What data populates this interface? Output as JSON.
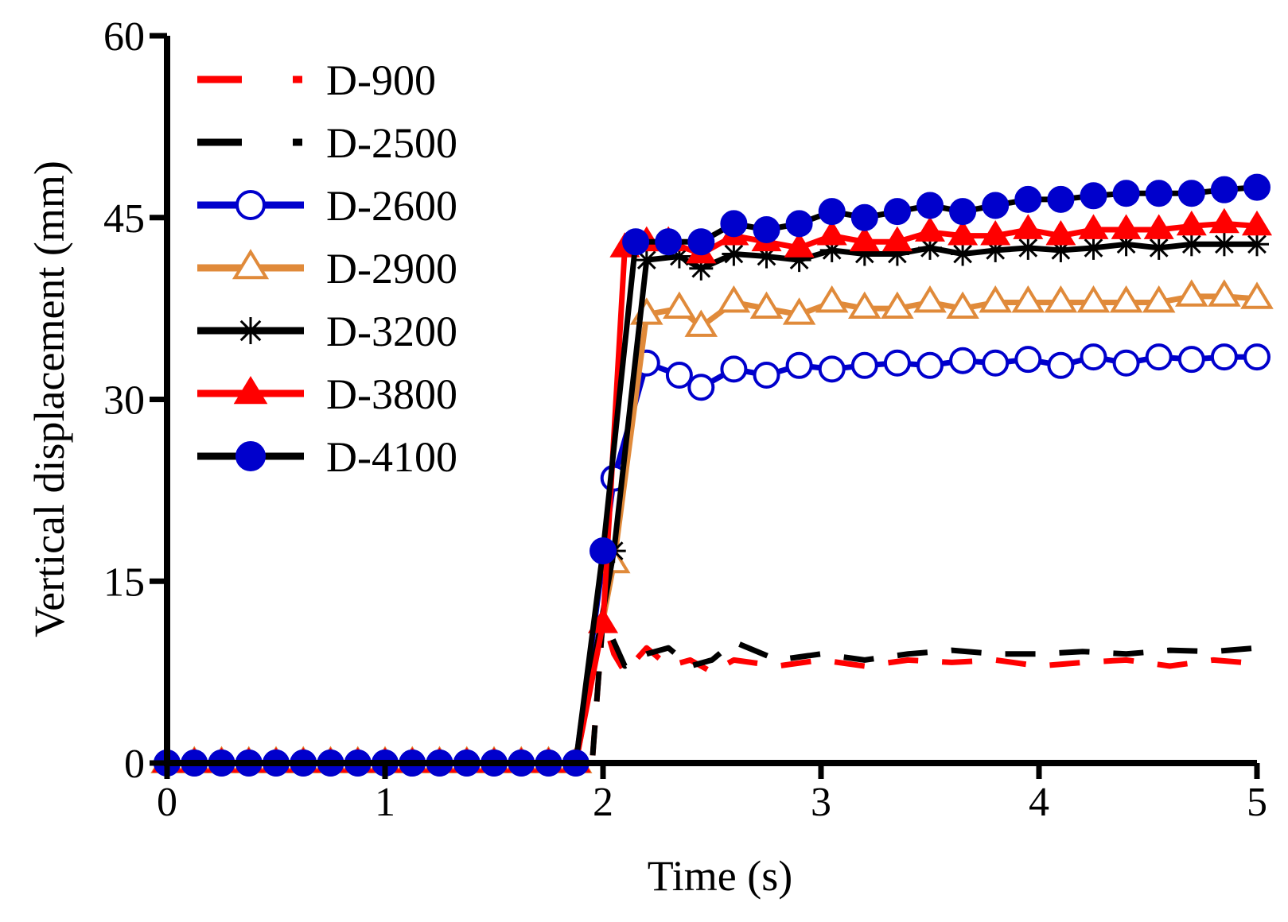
{
  "chart_data": {
    "type": "line",
    "title": "",
    "xlabel": "Time (s)",
    "ylabel": "Vertical displacement (mm)",
    "xlim": [
      0,
      5
    ],
    "ylim": [
      0,
      60
    ],
    "xticks": [
      0,
      1,
      2,
      3,
      4,
      5
    ],
    "yticks": [
      0,
      15,
      30,
      45,
      60
    ],
    "xtick_labels": [
      "0",
      "1",
      "2",
      "3",
      "4",
      "5"
    ],
    "ytick_labels": [
      "0",
      "15",
      "30",
      "45",
      "60"
    ],
    "grid": false,
    "legend_position": "top-left",
    "series": [
      {
        "name": "D-900",
        "color": "#ff0000",
        "line_style": "dashed",
        "marker": "none",
        "x": [
          0,
          1.95,
          2.0,
          2.05,
          2.1,
          2.2,
          2.3,
          2.4,
          2.5,
          2.6,
          2.8,
          3.0,
          3.2,
          3.4,
          3.6,
          3.8,
          4.0,
          4.2,
          4.4,
          4.6,
          4.8,
          5.0
        ],
        "y": [
          0,
          0,
          12,
          9.0,
          7.5,
          9.5,
          8.0,
          8.5,
          7.5,
          8.5,
          8.0,
          8.5,
          8.0,
          8.5,
          8.3,
          8.5,
          8.0,
          8.3,
          8.5,
          8.0,
          8.5,
          8.2
        ]
      },
      {
        "name": "D-2500",
        "color": "#000000",
        "line_style": "dashed",
        "marker": "none",
        "x": [
          0,
          1.95,
          2.0,
          2.1,
          2.2,
          2.3,
          2.4,
          2.5,
          2.6,
          2.8,
          3.0,
          3.2,
          3.4,
          3.6,
          3.8,
          4.0,
          4.2,
          4.4,
          4.6,
          4.8,
          5.0
        ],
        "y": [
          0,
          0,
          12,
          8.0,
          9.0,
          9.5,
          8.0,
          8.5,
          10.0,
          8.5,
          9.0,
          8.5,
          9.0,
          9.3,
          9.0,
          9.0,
          9.2,
          9.0,
          9.3,
          9.2,
          9.5
        ]
      },
      {
        "name": "D-2600",
        "color": "#0000cc",
        "line_style": "solid",
        "marker": "open-circle",
        "x": [
          0,
          0.125,
          0.25,
          0.375,
          0.5,
          0.625,
          0.75,
          0.875,
          1.0,
          1.125,
          1.25,
          1.375,
          1.5,
          1.625,
          1.75,
          1.875,
          2.05,
          2.2,
          2.35,
          2.45,
          2.6,
          2.75,
          2.9,
          3.05,
          3.2,
          3.35,
          3.5,
          3.65,
          3.8,
          3.95,
          4.1,
          4.25,
          4.4,
          4.55,
          4.7,
          4.85,
          5.0
        ],
        "y": [
          0,
          0,
          0,
          0,
          0,
          0,
          0,
          0,
          0,
          0,
          0,
          0,
          0,
          0,
          0,
          0,
          23.5,
          33.0,
          32.0,
          31.0,
          32.5,
          32.0,
          32.8,
          32.5,
          32.8,
          33.0,
          32.8,
          33.2,
          33.0,
          33.3,
          32.8,
          33.5,
          33.0,
          33.5,
          33.3,
          33.5,
          33.5
        ]
      },
      {
        "name": "D-2900",
        "color": "#e08a3a",
        "line_style": "solid",
        "marker": "open-triangle",
        "x": [
          0,
          0.125,
          0.25,
          0.375,
          0.5,
          0.625,
          0.75,
          0.875,
          1.0,
          1.125,
          1.25,
          1.375,
          1.5,
          1.625,
          1.75,
          1.875,
          2.05,
          2.2,
          2.35,
          2.45,
          2.6,
          2.75,
          2.9,
          3.05,
          3.2,
          3.35,
          3.5,
          3.65,
          3.8,
          3.95,
          4.1,
          4.25,
          4.4,
          4.55,
          4.7,
          4.85,
          5.0
        ],
        "y": [
          0,
          0,
          0,
          0,
          0,
          0,
          0,
          0,
          0,
          0,
          0,
          0,
          0,
          0,
          0,
          0,
          16.5,
          37.0,
          37.5,
          36.0,
          38.0,
          37.5,
          37.0,
          38.0,
          37.5,
          37.5,
          38.0,
          37.5,
          38.0,
          38.0,
          38.0,
          38.0,
          38.0,
          38.0,
          38.5,
          38.5,
          38.3
        ]
      },
      {
        "name": "D-3200",
        "color": "#000000",
        "line_style": "solid",
        "marker": "asterisk",
        "x": [
          0,
          0.125,
          0.25,
          0.375,
          0.5,
          0.625,
          0.75,
          0.875,
          1.0,
          1.125,
          1.25,
          1.375,
          1.5,
          1.625,
          1.75,
          1.875,
          2.05,
          2.2,
          2.35,
          2.45,
          2.6,
          2.75,
          2.9,
          3.05,
          3.2,
          3.35,
          3.5,
          3.65,
          3.8,
          3.95,
          4.1,
          4.25,
          4.4,
          4.55,
          4.7,
          4.85,
          5.0
        ],
        "y": [
          0,
          0,
          0,
          0,
          0,
          0,
          0,
          0,
          0,
          0,
          0,
          0,
          0,
          0,
          0,
          0,
          17.5,
          41.5,
          41.8,
          40.8,
          42.0,
          41.8,
          41.5,
          42.3,
          42.0,
          42.0,
          42.5,
          42.0,
          42.3,
          42.5,
          42.3,
          42.5,
          42.8,
          42.5,
          42.8,
          42.8,
          42.8
        ]
      },
      {
        "name": "D-3800",
        "color": "#ff0000",
        "line_style": "solid",
        "marker": "filled-triangle",
        "x": [
          0,
          0.125,
          0.25,
          0.375,
          0.5,
          0.625,
          0.75,
          0.875,
          1.0,
          1.125,
          1.25,
          1.375,
          1.5,
          1.625,
          1.75,
          1.875,
          2.0,
          2.1,
          2.2,
          2.3,
          2.45,
          2.6,
          2.75,
          2.9,
          3.05,
          3.2,
          3.35,
          3.5,
          3.65,
          3.8,
          3.95,
          4.1,
          4.25,
          4.4,
          4.55,
          4.7,
          4.85,
          5.0
        ],
        "y": [
          0,
          0,
          0,
          0,
          0,
          0,
          0,
          0,
          0,
          0,
          0,
          0,
          0,
          0,
          0,
          0,
          11.5,
          42.5,
          43.0,
          43.0,
          42.0,
          43.5,
          43.0,
          42.5,
          43.5,
          43.0,
          43.0,
          43.8,
          43.5,
          43.5,
          44.0,
          43.5,
          44.0,
          44.0,
          44.0,
          44.3,
          44.5,
          44.3
        ]
      },
      {
        "name": "D-4100",
        "color": "#0000cc",
        "line_style": "solid",
        "marker": "filled-circle",
        "x": [
          0,
          0.125,
          0.25,
          0.375,
          0.5,
          0.625,
          0.75,
          0.875,
          1.0,
          1.125,
          1.25,
          1.375,
          1.5,
          1.625,
          1.75,
          1.875,
          2.0,
          2.15,
          2.3,
          2.45,
          2.6,
          2.75,
          2.9,
          3.05,
          3.2,
          3.35,
          3.5,
          3.65,
          3.8,
          3.95,
          4.1,
          4.25,
          4.4,
          4.55,
          4.7,
          4.85,
          5.0
        ],
        "y": [
          0,
          0,
          0,
          0,
          0,
          0,
          0,
          0,
          0,
          0,
          0,
          0,
          0,
          0,
          0,
          0,
          17.5,
          43.0,
          43.0,
          43.0,
          44.5,
          44.0,
          44.5,
          45.5,
          45.0,
          45.5,
          46.0,
          45.5,
          46.0,
          46.5,
          46.5,
          46.8,
          47.0,
          47.0,
          47.0,
          47.3,
          47.5
        ]
      }
    ]
  }
}
